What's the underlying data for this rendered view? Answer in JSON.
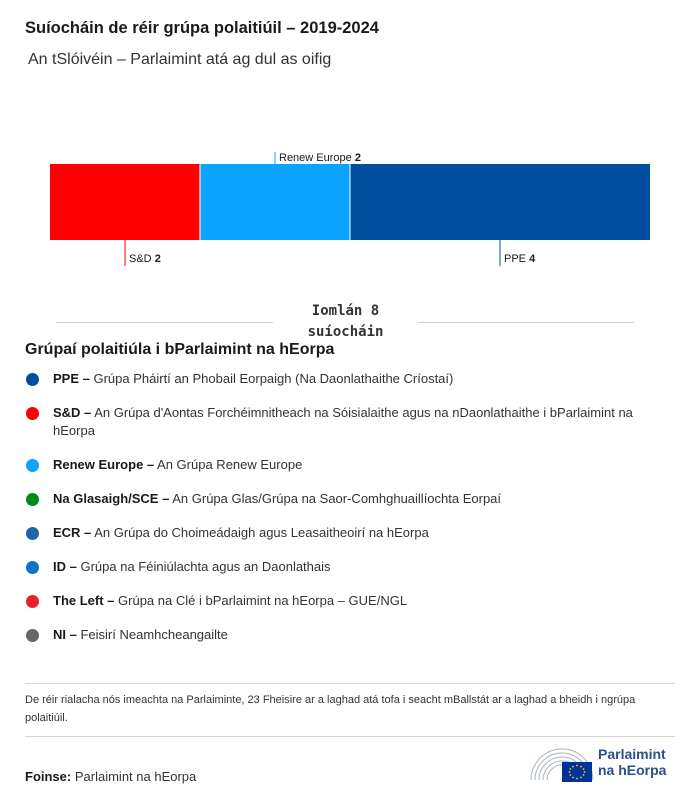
{
  "header": {
    "title": "Suíocháin de réir grúpa polaitiúil – 2019-2024",
    "subtitle": "An tSlóivéin – Parlaimint atá ag dul as oifig"
  },
  "chart_data": {
    "type": "bar",
    "orientation": "horizontal-stacked",
    "categories": [
      "S&D",
      "Renew Europe",
      "PPE"
    ],
    "values": [
      2,
      2,
      4
    ],
    "colors": [
      "#ff0000",
      "#0aa3ff",
      "#004f9f"
    ],
    "total": 8
  },
  "total": {
    "line1": "Iomlán 8",
    "line2": "suíocháin"
  },
  "legend": {
    "title": "Grúpaí polaitiúla i bParlaimint na hEorpa",
    "items": [
      {
        "abbr": "PPE –",
        "desc": "Grúpa Pháirtí an Phobail Eorpaigh (Na Daonlathaithe Críostaí)",
        "color": "#004f9f"
      },
      {
        "abbr": "S&D –",
        "desc": "An Grúpa d'Aontas Forchéimnitheach na Sóisialaithe agus na nDaonlathaithe i bParlaimint na hEorpa",
        "color": "#ff0000"
      },
      {
        "abbr": "Renew Europe –",
        "desc": "An Grúpa Renew Europe",
        "color": "#0aa3ff"
      },
      {
        "abbr": "Na Glasaigh/SCE –",
        "desc": "An Grúpa Glas/Grúpa na Saor-Comhghuaillíochta Eorpaí",
        "color": "#008c1b"
      },
      {
        "abbr": "ECR –",
        "desc": "An Grúpa do Choimeádaigh agus Leasaitheoirí na hEorpa",
        "color": "#1f63a8"
      },
      {
        "abbr": "ID –",
        "desc": "Grúpa na Féiniúlachta agus an Daonlathais",
        "color": "#0a72c9"
      },
      {
        "abbr": "The Left –",
        "desc": "Grúpa na Clé i bParlaimint na hEorpa – GUE/NGL",
        "color": "#e62129"
      },
      {
        "abbr": "NI –",
        "desc": "Feisirí Neamhcheangailte",
        "color": "#666666"
      }
    ]
  },
  "note": "De réir rialacha nós imeachta na Parlaiminte, 23 Fheisire ar a laghad atá tofa i seacht mBallstát ar a laghad a bheidh i ngrúpa polaitiúil.",
  "source": {
    "label": "Foinse:",
    "value": "Parlaimint na hEorpa"
  },
  "logo": {
    "line1": "Parlaimint",
    "line2": "na hEorpa"
  }
}
